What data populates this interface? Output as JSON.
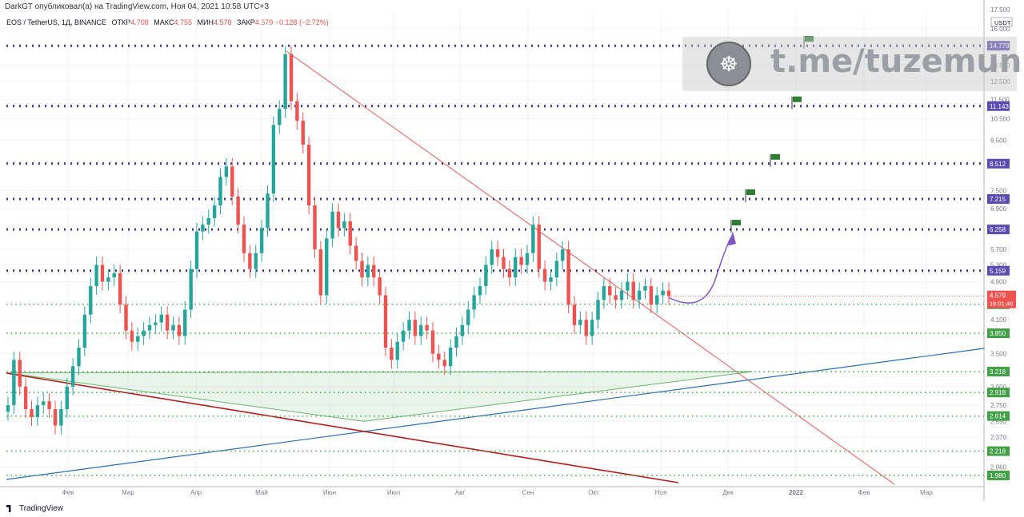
{
  "header": {
    "published": "DarkGT опубликовал(а) на TradingView.com, Ноя 04, 2021 10:58 UTC+3"
  },
  "legend": {
    "symbol": "EOS / TetherUS, 1Д, BINANCE",
    "open_label": "ОТКР",
    "open": "4.708",
    "high_label": "МАКС",
    "high": "4.755",
    "low_label": "МИН",
    "low": "4.578",
    "close_label": "ЗАКР",
    "close": "4.579",
    "change": "−0.128 (−2.72%)"
  },
  "watermark": {
    "text": "t.me/tuzemunio",
    "logo_icon": "meditating-astronaut-icon"
  },
  "footer": {
    "brand": "TradingView"
  },
  "colors": {
    "up": "#26a69a",
    "down": "#ef5350",
    "resistance_dotted": "#3f3a8c",
    "support_dotted": "#4caf50",
    "trendline_red": "#e57373",
    "trendline_blue": "#2a6fb5",
    "trendline_darkred": "#b71c1c",
    "arrow": "#7e57c2",
    "flag": "#2e7d32",
    "price_badge_purple": "#5b4bb3",
    "price_badge_green": "#43a047",
    "price_badge_current": "#ef5350"
  },
  "chart_data": {
    "type": "candlestick",
    "title": "EOS / TetherUS, 1Д, BINANCE",
    "y_scale": "log",
    "ylim": [
      1.9,
      17.5
    ],
    "x_ticks": [
      "Фев",
      "Мар",
      "Апр",
      "Май",
      "Июн",
      "Июл",
      "Авг",
      "Сен",
      "Окт",
      "Ноя",
      "Дек",
      "2022",
      "Фев",
      "Мар"
    ],
    "y_ticks": [
      "17.500",
      "16.000",
      "13.500",
      "12.500",
      "11.500",
      "10.500",
      "9.500",
      "7.500",
      "6.900",
      "5.700",
      "5.300",
      "4.900",
      "4.100",
      "3.500",
      "3.000",
      "2.750",
      "2.550",
      "2.370",
      "2.060"
    ],
    "axis_unit": "USDT",
    "current_price": {
      "value": "4.579",
      "countdown": "16:01:46"
    },
    "horizontal_levels": [
      {
        "value": 14.779,
        "label": "14.779",
        "style": "resistance"
      },
      {
        "value": 11.143,
        "label": "11.143",
        "style": "resistance"
      },
      {
        "value": 8.512,
        "label": "8.512",
        "style": "resistance"
      },
      {
        "value": 7.215,
        "label": "7.215",
        "style": "resistance"
      },
      {
        "value": 6.258,
        "label": "6.258",
        "style": "resistance"
      },
      {
        "value": 5.159,
        "label": "5.159",
        "style": "resistance"
      },
      {
        "value": 4.41,
        "label": "4.410",
        "style": "support"
      },
      {
        "value": 3.85,
        "label": "3.850",
        "style": "support"
      },
      {
        "value": 3.218,
        "label": "3.218",
        "style": "support"
      },
      {
        "value": 2.918,
        "label": "2.918",
        "style": "support"
      },
      {
        "value": 2.614,
        "label": "2.614",
        "style": "support"
      },
      {
        "value": 2.218,
        "label": "2.218",
        "style": "support"
      },
      {
        "value": 1.98,
        "label": "1.980",
        "style": "support"
      }
    ],
    "flags": [
      6.258,
      7.215,
      8.512,
      11.143,
      14.779
    ],
    "candles_close_path": [
      2.75,
      3.4,
      3.0,
      2.7,
      2.6,
      2.75,
      2.8,
      2.7,
      2.5,
      2.7,
      3.0,
      3.3,
      3.6,
      4.2,
      4.8,
      5.3,
      4.9,
      5.0,
      5.1,
      4.4,
      3.9,
      3.7,
      3.8,
      3.9,
      4.0,
      4.05,
      4.2,
      3.9,
      4.0,
      3.8,
      4.3,
      5.2,
      6.2,
      6.4,
      6.6,
      7.0,
      8.0,
      8.4,
      7.3,
      6.4,
      5.6,
      5.2,
      5.6,
      6.3,
      7.4,
      10.2,
      11.0,
      14.2,
      11.4,
      10.4,
      9.3,
      7.0,
      5.7,
      4.6,
      6.0,
      6.8,
      6.3,
      6.5,
      5.8,
      5.4,
      5.0,
      5.3,
      5.0,
      4.6,
      3.6,
      3.4,
      3.7,
      3.9,
      4.1,
      3.8,
      4.0,
      3.9,
      3.5,
      3.4,
      3.3,
      3.6,
      3.8,
      4.0,
      4.3,
      4.6,
      4.8,
      5.3,
      5.7,
      5.5,
      5.2,
      5.0,
      5.5,
      5.3,
      5.6,
      6.4,
      5.2,
      4.9,
      5.0,
      5.4,
      5.7,
      4.4,
      4.0,
      4.1,
      3.8,
      4.1,
      4.5,
      4.8,
      4.6,
      4.5,
      4.7,
      4.9,
      4.5,
      4.7,
      4.8,
      4.4,
      4.6,
      4.7,
      4.58
    ]
  }
}
